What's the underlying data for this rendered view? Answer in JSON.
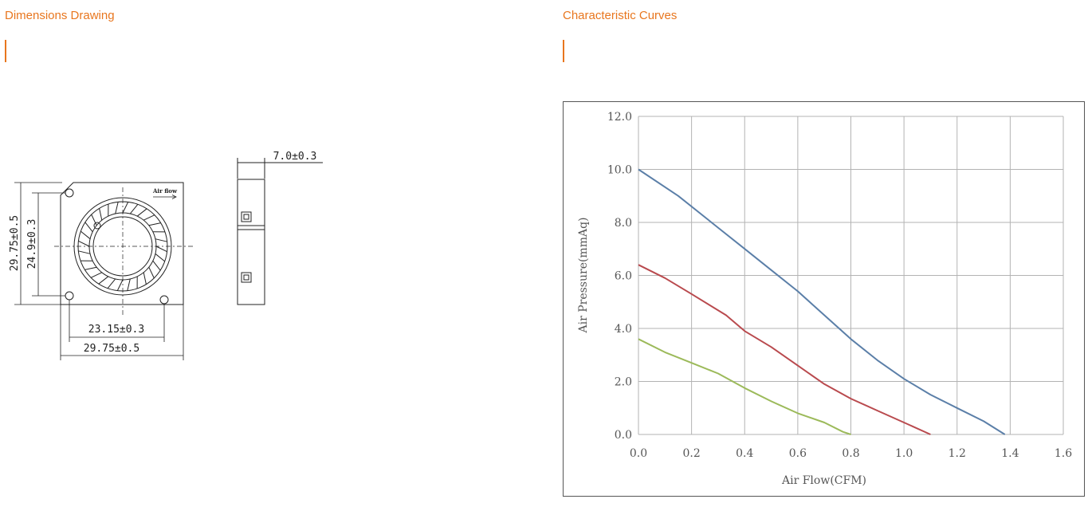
{
  "left_section": {
    "title": "Dimensions Drawing",
    "dimensions": {
      "height_outer": "29.75±0.5",
      "height_holes": "24.9±0.3",
      "width_holes": "23.15±0.3",
      "width_outer": "29.75±0.5",
      "thickness": "7.0±0.3",
      "airflow_label": "Air flow"
    }
  },
  "right_section": {
    "title": "Characteristic Curves"
  },
  "chart_data": {
    "type": "line",
    "title": "",
    "xlabel": "Air Flow(CFM)",
    "ylabel": "Air Pressure(mmAq)",
    "xlim": [
      0,
      1.6
    ],
    "ylim": [
      0,
      12
    ],
    "x_ticks": [
      "0.0",
      "0.2",
      "0.4",
      "0.6",
      "0.8",
      "1.0",
      "1.2",
      "1.4",
      "1.6"
    ],
    "y_ticks": [
      "0.0",
      "2.0",
      "4.0",
      "6.0",
      "8.0",
      "10.0",
      "12.0"
    ],
    "grid": true,
    "legend": "none",
    "series": [
      {
        "color": "#5b7fa8",
        "x": [
          0,
          0.15,
          0.3,
          0.4,
          0.5,
          0.6,
          0.7,
          0.8,
          0.9,
          1.0,
          1.1,
          1.2,
          1.3,
          1.38
        ],
        "y": [
          10.0,
          9.0,
          7.8,
          7.0,
          6.2,
          5.4,
          4.5,
          3.6,
          2.8,
          2.1,
          1.5,
          1.0,
          0.5,
          0.0
        ]
      },
      {
        "color": "#b94a4e",
        "x": [
          0,
          0.1,
          0.2,
          0.33,
          0.4,
          0.5,
          0.6,
          0.7,
          0.8,
          0.9,
          1.0,
          1.1
        ],
        "y": [
          6.4,
          5.9,
          5.3,
          4.5,
          3.9,
          3.3,
          2.6,
          1.9,
          1.35,
          0.9,
          0.45,
          0.0
        ]
      },
      {
        "color": "#9cba5a",
        "x": [
          0,
          0.1,
          0.2,
          0.3,
          0.4,
          0.5,
          0.6,
          0.7,
          0.77,
          0.8
        ],
        "y": [
          3.6,
          3.1,
          2.7,
          2.3,
          1.75,
          1.25,
          0.8,
          0.45,
          0.1,
          0.0
        ]
      }
    ]
  },
  "colors": {
    "accent": "#e8761e",
    "grid": "#b3b3b3",
    "frame": "#555555"
  }
}
